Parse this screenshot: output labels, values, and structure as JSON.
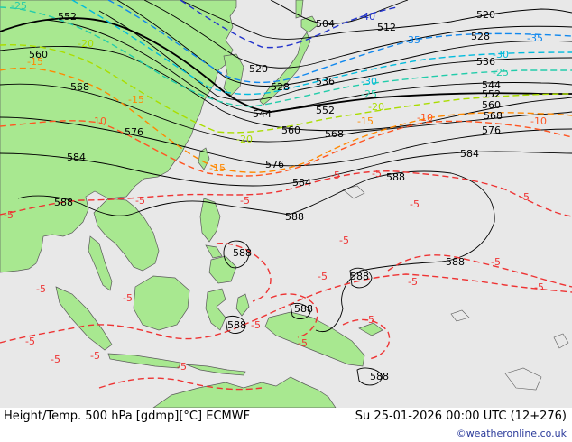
{
  "footer": {
    "title": "Height/Temp. 500 hPa [gdmp][°C] ECMWF",
    "datetime": "Su 25-01-2026 00:00 UTC (12+276)",
    "credit": "©weatheronline.co.uk"
  },
  "colors": {
    "ocean": "#e8e8e8",
    "land": "#a8e890",
    "coast": "#5a5a5a",
    "height_contour": "#000000",
    "temp_minus5": "#ee3333",
    "temp_minus10": "#ff5522",
    "temp_minus15": "#ff8800",
    "temp_minus20": "#aadd00",
    "temp_minus25": "#22ccaa",
    "temp_minus30": "#00bbdd",
    "temp_minus35": "#1188ee",
    "temp_minus40": "#2233cc"
  },
  "height_labels": {
    "h504": "504",
    "h512": "512",
    "h520": "520",
    "h528": "528",
    "h536": "536",
    "h544": "544",
    "h552": "552",
    "h560": "560",
    "h568": "568",
    "h576": "576",
    "h584": "584",
    "h588": "588"
  },
  "temp_labels": {
    "t5": "-5",
    "t10": "-10",
    "t15": "-15",
    "t20": "-20",
    "t25": "-25",
    "t30": "-30",
    "t35": "-35",
    "t40": "-40"
  }
}
